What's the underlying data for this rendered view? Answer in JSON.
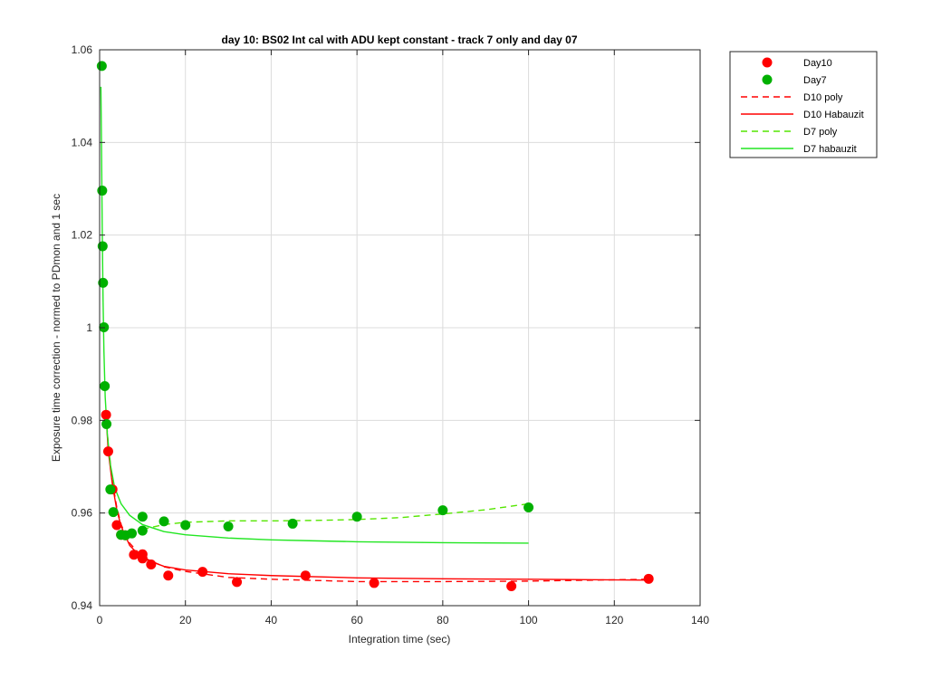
{
  "chart_data": {
    "type": "scatter",
    "title": "day 10: BS02   Int cal with ADU kept constant - track 7 only and day 07",
    "xlabel": "Integration time (sec)",
    "ylabel": "Exposure time correction - normed to PDmon and 1 sec",
    "xlim": [
      0,
      140
    ],
    "ylim": [
      0.94,
      1.06
    ],
    "xticks": [
      0,
      20,
      40,
      60,
      80,
      100,
      120,
      140
    ],
    "yticks": [
      0.94,
      0.96,
      0.98,
      1,
      1.02,
      1.04,
      1.06
    ],
    "xtick_labels": [
      "0",
      "20",
      "40",
      "60",
      "80",
      "100",
      "120",
      "140"
    ],
    "ytick_labels": [
      "0.94",
      "0.96",
      "0.98",
      "1",
      "1.02",
      "1.04",
      "1.06"
    ],
    "grid": true,
    "legend_position": "outside-top-right",
    "series": [
      {
        "name": "Day10",
        "kind": "markers",
        "color": "#ff0000",
        "points": [
          [
            1.5,
            0.9812
          ],
          [
            2,
            0.9733
          ],
          [
            3,
            0.9651
          ],
          [
            4,
            0.9574
          ],
          [
            5,
            0.9553
          ],
          [
            6,
            0.9552
          ],
          [
            8,
            0.951
          ],
          [
            10,
            0.9511
          ],
          [
            10,
            0.9502
          ],
          [
            12,
            0.9489
          ],
          [
            16,
            0.9465
          ],
          [
            24,
            0.9473
          ],
          [
            32,
            0.9451
          ],
          [
            48,
            0.9465
          ],
          [
            64,
            0.9449
          ],
          [
            96,
            0.9442
          ],
          [
            128,
            0.9458
          ]
        ]
      },
      {
        "name": "Day7",
        "kind": "markers",
        "color": "#00b000",
        "points": [
          [
            0.5,
            1.0565
          ],
          [
            0.6,
            1.0296
          ],
          [
            0.7,
            1.0176
          ],
          [
            0.8,
            1.0097
          ],
          [
            1,
            1.0001
          ],
          [
            1.2,
            0.9874
          ],
          [
            1.6,
            0.9792
          ],
          [
            2.5,
            0.9651
          ],
          [
            3.2,
            0.9602
          ],
          [
            5,
            0.9553
          ],
          [
            6,
            0.9552
          ],
          [
            7.5,
            0.9556
          ],
          [
            10,
            0.9562
          ],
          [
            10,
            0.9592
          ],
          [
            15,
            0.9582
          ],
          [
            20,
            0.9574
          ],
          [
            30,
            0.9571
          ],
          [
            45,
            0.9577
          ],
          [
            60,
            0.9592
          ],
          [
            80,
            0.9606
          ],
          [
            100,
            0.9612
          ]
        ]
      },
      {
        "name": "D10 poly",
        "kind": "line",
        "dash": "dashed",
        "color": "#ff0000",
        "points": [
          [
            1.5,
            0.9812
          ],
          [
            2,
            0.9748
          ],
          [
            3,
            0.9667
          ],
          [
            4,
            0.9612
          ],
          [
            5,
            0.9575
          ],
          [
            7,
            0.9535
          ],
          [
            10,
            0.9505
          ],
          [
            15,
            0.9484
          ],
          [
            20,
            0.9474
          ],
          [
            30,
            0.9461
          ],
          [
            40,
            0.9457
          ],
          [
            60,
            0.9452
          ],
          [
            80,
            0.9452
          ],
          [
            100,
            0.9453
          ],
          [
            128,
            0.9457
          ]
        ]
      },
      {
        "name": "D10 Habauzit",
        "kind": "line",
        "dash": "solid",
        "color": "#ff0000",
        "points": [
          [
            1.5,
            0.9812
          ],
          [
            2,
            0.9735
          ],
          [
            3,
            0.966
          ],
          [
            4,
            0.9607
          ],
          [
            5,
            0.9572
          ],
          [
            7,
            0.953
          ],
          [
            10,
            0.9502
          ],
          [
            15,
            0.9485
          ],
          [
            20,
            0.9477
          ],
          [
            30,
            0.9469
          ],
          [
            40,
            0.9465
          ],
          [
            60,
            0.946
          ],
          [
            80,
            0.9458
          ],
          [
            100,
            0.9457
          ],
          [
            128,
            0.9455
          ]
        ]
      },
      {
        "name": "D7 poly",
        "kind": "line",
        "dash": "dashed",
        "color": "#55e600",
        "points": [
          [
            10,
            0.9565
          ],
          [
            15,
            0.9575
          ],
          [
            20,
            0.958
          ],
          [
            30,
            0.9583
          ],
          [
            40,
            0.9583
          ],
          [
            50,
            0.9584
          ],
          [
            60,
            0.9586
          ],
          [
            70,
            0.959
          ],
          [
            80,
            0.9598
          ],
          [
            90,
            0.9607
          ],
          [
            100,
            0.962
          ]
        ]
      },
      {
        "name": "D7 habauzit",
        "kind": "line",
        "dash": "solid",
        "color": "#22e622",
        "points": [
          [
            0.3,
            1.052
          ],
          [
            0.45,
            1.038
          ],
          [
            0.6,
            1.022
          ],
          [
            0.8,
            1.006
          ],
          [
            1.0,
            0.995
          ],
          [
            1.3,
            0.985
          ],
          [
            1.8,
            0.977
          ],
          [
            2.5,
            0.9705
          ],
          [
            3.5,
            0.9655
          ],
          [
            5,
            0.962
          ],
          [
            7,
            0.9595
          ],
          [
            10,
            0.9575
          ],
          [
            15,
            0.956
          ],
          [
            20,
            0.9553
          ],
          [
            30,
            0.9546
          ],
          [
            40,
            0.9542
          ],
          [
            50,
            0.954
          ],
          [
            60,
            0.9538
          ],
          [
            80,
            0.9536
          ],
          [
            100,
            0.9535
          ]
        ]
      }
    ]
  }
}
